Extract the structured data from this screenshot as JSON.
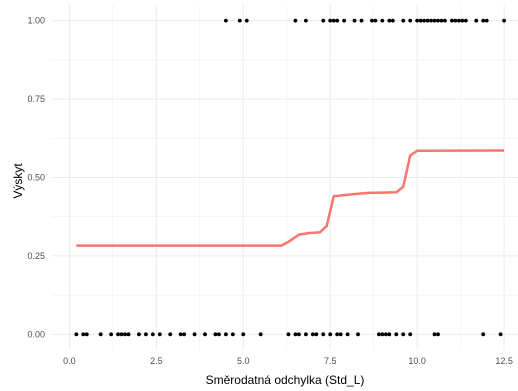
{
  "chart_data": {
    "type": "scatter",
    "title": "",
    "xlabel": "Směrodatná odchylka (Std_L)",
    "ylabel": "Výskyt",
    "xlim": [
      -0.5,
      12.9
    ],
    "ylim": [
      -0.05,
      1.05
    ],
    "x_ticks": [
      0.0,
      2.5,
      5.0,
      7.5,
      10.0,
      12.5
    ],
    "x_tick_labels": [
      "0.0",
      "2.5",
      "5.0",
      "7.5",
      "10.0",
      "12.5"
    ],
    "y_ticks": [
      0.0,
      0.25,
      0.5,
      0.75,
      1.0
    ],
    "y_tick_labels": [
      "0.00",
      "0.25",
      "0.50",
      "0.75",
      "1.00"
    ],
    "grid": true,
    "colors": {
      "points": "#000000",
      "line": "#f8766d",
      "grid": "#ebebeb",
      "background": "#ffffff"
    },
    "series": [
      {
        "type": "scatter",
        "points": [
          [
            0.2,
            0
          ],
          [
            0.4,
            0
          ],
          [
            0.5,
            0
          ],
          [
            0.9,
            0
          ],
          [
            1.2,
            0
          ],
          [
            1.4,
            0
          ],
          [
            1.5,
            0
          ],
          [
            1.6,
            0
          ],
          [
            1.7,
            0
          ],
          [
            2.0,
            0
          ],
          [
            2.2,
            0
          ],
          [
            2.4,
            0
          ],
          [
            2.6,
            0
          ],
          [
            2.9,
            0
          ],
          [
            3.2,
            0
          ],
          [
            3.3,
            0
          ],
          [
            3.6,
            0
          ],
          [
            3.9,
            0
          ],
          [
            4.2,
            0
          ],
          [
            4.3,
            0
          ],
          [
            4.5,
            0
          ],
          [
            4.7,
            0
          ],
          [
            5.0,
            0
          ],
          [
            5.5,
            0
          ],
          [
            6.3,
            0
          ],
          [
            6.5,
            0
          ],
          [
            6.6,
            0
          ],
          [
            6.8,
            0
          ],
          [
            7.0,
            0
          ],
          [
            7.1,
            0
          ],
          [
            7.3,
            0
          ],
          [
            7.5,
            0
          ],
          [
            7.7,
            0
          ],
          [
            7.8,
            0
          ],
          [
            8.0,
            0
          ],
          [
            8.3,
            0
          ],
          [
            8.9,
            0
          ],
          [
            9.0,
            0
          ],
          [
            9.1,
            0
          ],
          [
            9.2,
            0
          ],
          [
            9.4,
            0
          ],
          [
            9.6,
            0
          ],
          [
            9.8,
            0
          ],
          [
            10.5,
            0
          ],
          [
            10.6,
            0
          ],
          [
            11.9,
            0
          ],
          [
            12.4,
            0
          ],
          [
            4.5,
            1
          ],
          [
            4.9,
            1
          ],
          [
            5.1,
            1
          ],
          [
            6.5,
            1
          ],
          [
            6.8,
            1
          ],
          [
            7.3,
            1
          ],
          [
            7.5,
            1
          ],
          [
            7.6,
            1
          ],
          [
            7.7,
            1
          ],
          [
            7.9,
            1
          ],
          [
            8.2,
            1
          ],
          [
            8.4,
            1
          ],
          [
            8.7,
            1
          ],
          [
            8.8,
            1
          ],
          [
            9.0,
            1
          ],
          [
            9.2,
            1
          ],
          [
            9.3,
            1
          ],
          [
            9.6,
            1
          ],
          [
            9.8,
            1
          ],
          [
            10.0,
            1
          ],
          [
            10.1,
            1
          ],
          [
            10.2,
            1
          ],
          [
            10.3,
            1
          ],
          [
            10.4,
            1
          ],
          [
            10.5,
            1
          ],
          [
            10.6,
            1
          ],
          [
            10.7,
            1
          ],
          [
            10.8,
            1
          ],
          [
            11.0,
            1
          ],
          [
            11.1,
            1
          ],
          [
            11.2,
            1
          ],
          [
            11.3,
            1
          ],
          [
            11.4,
            1
          ],
          [
            11.7,
            1
          ],
          [
            11.9,
            1
          ],
          [
            12.0,
            1
          ],
          [
            12.5,
            1
          ]
        ]
      },
      {
        "type": "line",
        "points": [
          [
            0.2,
            0.283
          ],
          [
            6.1,
            0.283
          ],
          [
            6.3,
            0.295
          ],
          [
            6.6,
            0.318
          ],
          [
            6.9,
            0.323
          ],
          [
            7.2,
            0.325
          ],
          [
            7.4,
            0.345
          ],
          [
            7.6,
            0.44
          ],
          [
            8.0,
            0.445
          ],
          [
            8.3,
            0.448
          ],
          [
            8.6,
            0.451
          ],
          [
            9.0,
            0.452
          ],
          [
            9.4,
            0.453
          ],
          [
            9.6,
            0.47
          ],
          [
            9.8,
            0.57
          ],
          [
            10.0,
            0.585
          ],
          [
            12.5,
            0.586
          ]
        ]
      }
    ]
  }
}
